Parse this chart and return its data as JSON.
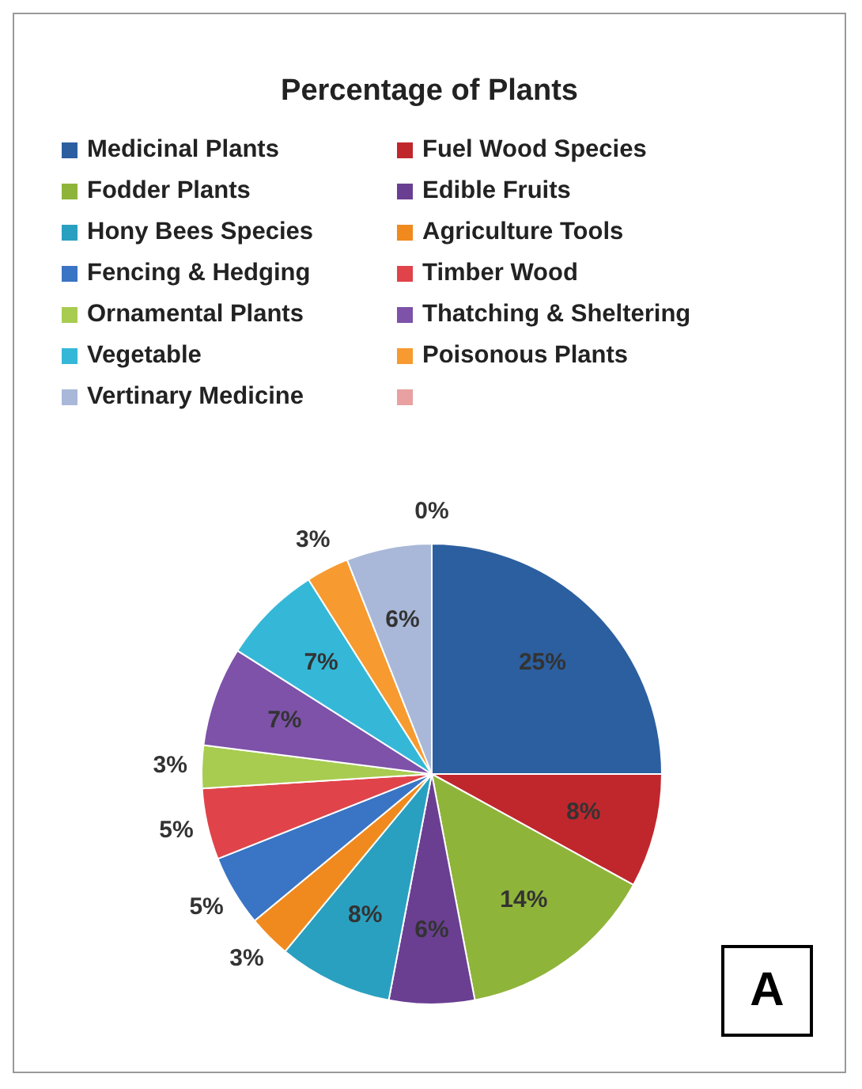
{
  "chart_data": {
    "type": "pie",
    "title": "Percentage of Plants",
    "categories": [
      "Medicinal Plants",
      "Fuel Wood Species",
      "Fodder Plants",
      "Edible Fruits",
      "Hony Bees Species",
      "Agriculture Tools",
      "Fencing & Hedging",
      "Timber Wood",
      "Ornamental Plants",
      "Thatching & Sheltering",
      "Vegetable",
      "Poisonous Plants",
      "Vertinary Medicine",
      null
    ],
    "values": [
      25,
      8,
      14,
      6,
      8,
      3,
      5,
      5,
      3,
      7,
      7,
      3,
      6,
      0
    ],
    "value_labels": [
      "25%",
      "8%",
      "14%",
      "6%",
      "8%",
      "3%",
      "5%",
      "5%",
      "3%",
      "7%",
      "7%",
      "3%",
      "6%",
      "0%"
    ],
    "colors": [
      "#2c5fa0",
      "#c0272d",
      "#8fb43a",
      "#6a3f92",
      "#2aa0c0",
      "#f08a1e",
      "#3a74c4",
      "#e0434a",
      "#a8cc50",
      "#7d52a8",
      "#35b8d8",
      "#f79a30",
      "#a9b8d8",
      "#e8a0a0"
    ],
    "legend": "top",
    "annotations": [
      "A"
    ]
  }
}
